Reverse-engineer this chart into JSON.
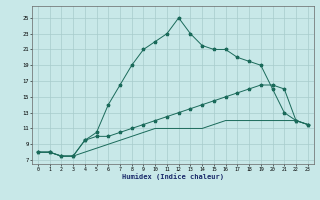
{
  "xlabel": "Humidex (Indice chaleur)",
  "bg_color": "#c8e8e8",
  "grid_color": "#a8cccc",
  "line_color": "#1a6a5a",
  "xlim": [
    -0.5,
    23.5
  ],
  "ylim": [
    6.5,
    26.5
  ],
  "xticks": [
    0,
    1,
    2,
    3,
    4,
    5,
    6,
    7,
    8,
    9,
    10,
    11,
    12,
    13,
    14,
    15,
    16,
    17,
    18,
    19,
    20,
    21,
    22,
    23
  ],
  "yticks": [
    7,
    9,
    11,
    13,
    15,
    17,
    19,
    21,
    23,
    25
  ],
  "line_upper_x": [
    0,
    1,
    2,
    3,
    4,
    5,
    6,
    7,
    8,
    9,
    10,
    11,
    12,
    13,
    14,
    15,
    16,
    17,
    18,
    19,
    20,
    21,
    22,
    23
  ],
  "line_upper_y": [
    8,
    8,
    7.5,
    7.5,
    9.5,
    10.5,
    14,
    16.5,
    19,
    21,
    22,
    23,
    25,
    23,
    21.5,
    21,
    21,
    20,
    19.5,
    19,
    16,
    13,
    12,
    11.5
  ],
  "line_mid_x": [
    0,
    1,
    2,
    3,
    4,
    5,
    6,
    7,
    8,
    9,
    10,
    11,
    12,
    13,
    14,
    15,
    16,
    17,
    18,
    19,
    20,
    21,
    22,
    23
  ],
  "line_mid_y": [
    8,
    8,
    7.5,
    7.5,
    9.5,
    10,
    10,
    10.5,
    11,
    11.5,
    12,
    12.5,
    13,
    13.5,
    14,
    14.5,
    15,
    15.5,
    16,
    16.5,
    16.5,
    16,
    12,
    11.5
  ],
  "line_lower_x": [
    0,
    1,
    2,
    3,
    4,
    5,
    6,
    7,
    8,
    9,
    10,
    11,
    12,
    13,
    14,
    15,
    16,
    17,
    18,
    19,
    20,
    21,
    22,
    23
  ],
  "line_lower_y": [
    8,
    8,
    7.5,
    7.5,
    8,
    8.5,
    9,
    9.5,
    10,
    10.5,
    11,
    11,
    11,
    11,
    11,
    11.5,
    12,
    12,
    12,
    12,
    12,
    12,
    12,
    11.5
  ],
  "marker_upper": [
    0,
    1,
    4,
    5,
    6,
    7,
    8,
    9,
    10,
    11,
    12,
    13,
    14,
    15,
    16,
    17,
    18,
    19,
    20,
    21,
    22,
    23
  ],
  "marker_mid": [
    0,
    1,
    2,
    3,
    4,
    5,
    6,
    7,
    8,
    9,
    10,
    11,
    12,
    13,
    14,
    15,
    16,
    17,
    18,
    19,
    20,
    21,
    22,
    23
  ]
}
